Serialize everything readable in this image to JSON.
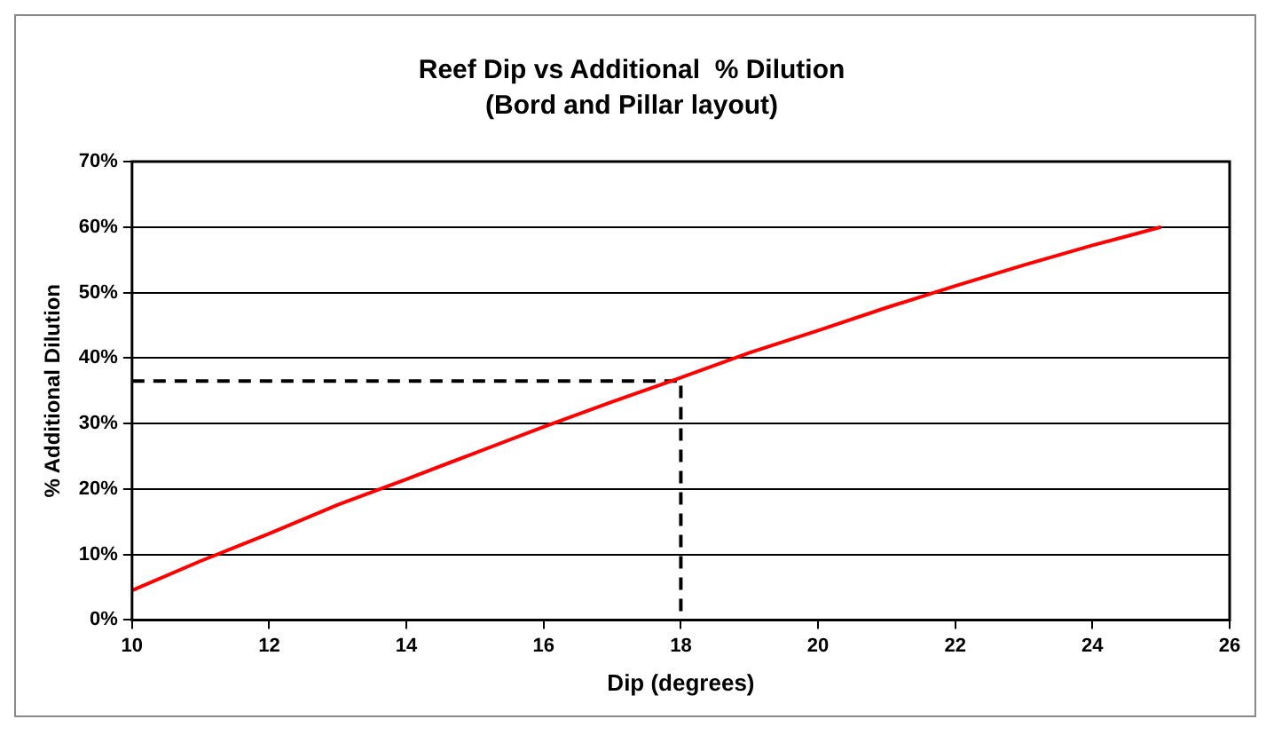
{
  "chart_data": {
    "type": "line",
    "title": "Reef Dip vs Additional  % Dilution",
    "subtitle": "(Bord and Pillar layout)",
    "xlabel": "Dip (degrees)",
    "ylabel": "% Additional Dilution",
    "xlim": [
      10,
      26
    ],
    "xticks": [
      10,
      12,
      14,
      16,
      18,
      20,
      22,
      24,
      26
    ],
    "ylim": [
      0,
      70
    ],
    "yticks": [
      {
        "value": 0,
        "label": "0%"
      },
      {
        "value": 10,
        "label": "10%"
      },
      {
        "value": 20,
        "label": "20%"
      },
      {
        "value": 30,
        "label": "30%"
      },
      {
        "value": 40,
        "label": "40%"
      },
      {
        "value": 50,
        "label": "50%"
      },
      {
        "value": 60,
        "label": "60%"
      },
      {
        "value": 70,
        "label": "70%"
      }
    ],
    "grid": "y",
    "legend": false,
    "marker": "none",
    "series": [
      {
        "color": "#ff0000",
        "line_style": "solid",
        "x": [
          10,
          11,
          12,
          13,
          14,
          15,
          16,
          17,
          18,
          19,
          20,
          21,
          22,
          23,
          24,
          25
        ],
        "values": [
          4.5,
          9,
          13.2,
          17.6,
          21.5,
          25.5,
          29.5,
          33.3,
          37,
          40.8,
          44.2,
          47.7,
          51,
          54.2,
          57.2,
          60
        ]
      },
      {
        "color": "#000000",
        "line_style": "dashed",
        "x": [
          10,
          18,
          18
        ],
        "values": [
          36.5,
          36.5,
          0
        ]
      }
    ]
  }
}
